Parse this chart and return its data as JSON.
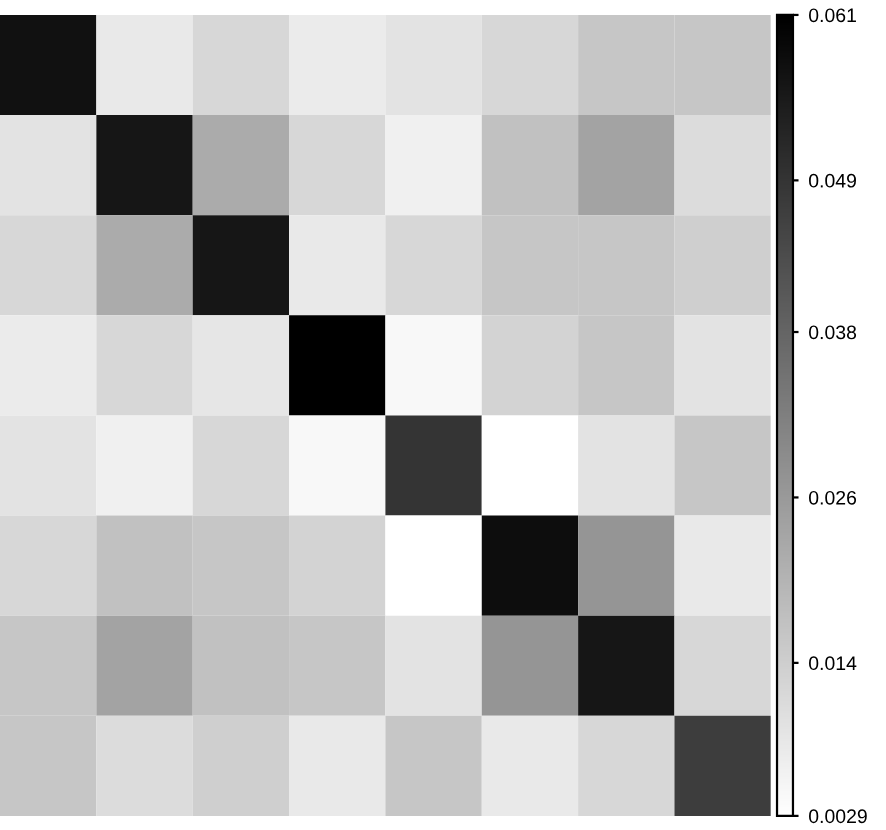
{
  "chart_data": {
    "type": "heatmap",
    "categories": [
      null,
      null,
      null,
      null,
      null,
      null,
      null,
      null
    ],
    "y_categories": [
      null,
      null,
      null,
      null,
      null,
      null,
      null,
      null
    ],
    "cells": [
      [
        0.057,
        0.008,
        0.012,
        0.0076,
        0.0093,
        0.012,
        0.016,
        0.016
      ],
      [
        0.0093,
        0.056,
        0.022,
        0.012,
        0.0064,
        0.017,
        0.024,
        0.011
      ],
      [
        0.012,
        0.022,
        0.056,
        0.008,
        0.012,
        0.016,
        0.016,
        0.014
      ],
      [
        0.0076,
        0.012,
        0.0087,
        0.061,
        0.0046,
        0.013,
        0.016,
        0.0093
      ],
      [
        0.0093,
        0.0064,
        0.012,
        0.0046,
        0.049,
        0.0029,
        0.0093,
        0.016
      ],
      [
        0.012,
        0.017,
        0.016,
        0.013,
        0.0029,
        0.058,
        0.027,
        0.008
      ],
      [
        0.016,
        0.024,
        0.017,
        0.016,
        0.0093,
        0.027,
        0.056,
        0.012
      ],
      [
        0.016,
        0.011,
        0.014,
        0.008,
        0.016,
        0.008,
        0.012,
        0.047
      ]
    ],
    "clim": [
      0.0029,
      0.061
    ],
    "cticks": [
      0.0029,
      0.014,
      0.026,
      0.038,
      0.049,
      0.061
    ]
  }
}
